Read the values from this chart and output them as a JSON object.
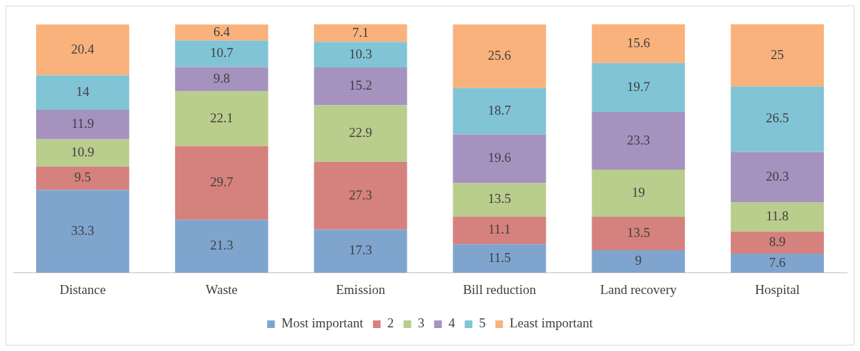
{
  "chart_data": {
    "type": "bar",
    "stacked": true,
    "data_labels": true,
    "legend": "bottom",
    "categories": [
      "Distance",
      "Waste",
      "Emission",
      "Bill reduction",
      "Land recovery",
      "Hospital"
    ],
    "series": [
      {
        "name": "Most important",
        "color": "#7fa5cf",
        "values": [
          33.3,
          21.3,
          17.3,
          11.5,
          9,
          7.6
        ]
      },
      {
        "name": "2",
        "color": "#d5817d",
        "values": [
          9.5,
          29.7,
          27.3,
          11.1,
          13.5,
          8.9
        ]
      },
      {
        "name": "3",
        "color": "#b9cd8c",
        "values": [
          10.9,
          22.1,
          22.9,
          13.5,
          19,
          11.8
        ]
      },
      {
        "name": "4",
        "color": "#a592bf",
        "values": [
          11.9,
          9.8,
          15.2,
          19.6,
          23.3,
          20.3
        ]
      },
      {
        "name": "5",
        "color": "#80c4d6",
        "values": [
          14,
          10.7,
          10.3,
          18.7,
          19.7,
          26.5
        ]
      },
      {
        "name": "Least important",
        "color": "#f9b27c",
        "values": [
          20.4,
          6.4,
          7.1,
          25.6,
          15.6,
          25
        ]
      }
    ]
  }
}
